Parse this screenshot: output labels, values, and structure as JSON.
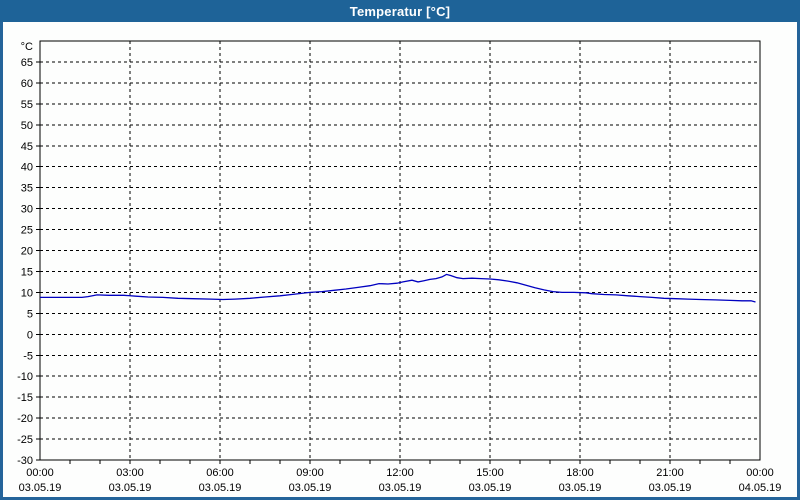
{
  "window": {
    "title": "Temperatur [°C]",
    "titlebar_color": "#1E6398",
    "border_color": "#24649A",
    "background_color": "#FDFEFD"
  },
  "chart_data": {
    "type": "line",
    "title": "Temperatur [°C]",
    "ylabel": "°C",
    "xlabel": "",
    "grid": "dashed",
    "legend": "none",
    "y_axis": {
      "unit": "°C",
      "range": [
        -30,
        70
      ],
      "tick_step": 5,
      "tick_labels": [
        "65",
        "60",
        "55",
        "50",
        "45",
        "40",
        "35",
        "30",
        "25",
        "20",
        "15",
        "10",
        "5",
        "0",
        "-5",
        "-10",
        "-15",
        "-20",
        "-25",
        "-30"
      ]
    },
    "x_axis": {
      "range_hours": [
        0,
        24
      ],
      "minor_tick_hours": 1,
      "grid_interval_hours": 3,
      "tick_labels": [
        {
          "hour": 0,
          "time": "00:00",
          "date": "03.05.19"
        },
        {
          "hour": 3,
          "time": "03:00",
          "date": "03.05.19"
        },
        {
          "hour": 6,
          "time": "06:00",
          "date": "03.05.19"
        },
        {
          "hour": 9,
          "time": "09:00",
          "date": "03.05.19"
        },
        {
          "hour": 12,
          "time": "12:00",
          "date": "03.05.19"
        },
        {
          "hour": 15,
          "time": "15:00",
          "date": "03.05.19"
        },
        {
          "hour": 18,
          "time": "18:00",
          "date": "03.05.19"
        },
        {
          "hour": 21,
          "time": "21:00",
          "date": "03.05.19"
        },
        {
          "hour": 24,
          "time": "00:00",
          "date": "04.05.19"
        }
      ]
    },
    "series": [
      {
        "name": "Temperatur",
        "color": "#0000C0",
        "points": [
          [
            0,
            8.8
          ],
          [
            0.7,
            8.8
          ],
          [
            1.4,
            8.8
          ],
          [
            1.6,
            9.0
          ],
          [
            1.9,
            9.4
          ],
          [
            2.3,
            9.3
          ],
          [
            2.8,
            9.3
          ],
          [
            3.2,
            9.1
          ],
          [
            3.6,
            8.9
          ],
          [
            4.1,
            8.8
          ],
          [
            4.6,
            8.6
          ],
          [
            5.1,
            8.5
          ],
          [
            5.7,
            8.4
          ],
          [
            6.1,
            8.3
          ],
          [
            6.5,
            8.4
          ],
          [
            7.0,
            8.6
          ],
          [
            7.5,
            8.9
          ],
          [
            8.0,
            9.2
          ],
          [
            8.5,
            9.6
          ],
          [
            9.0,
            10.0
          ],
          [
            9.4,
            10.2
          ],
          [
            9.8,
            10.5
          ],
          [
            10.2,
            10.8
          ],
          [
            10.6,
            11.2
          ],
          [
            11.0,
            11.6
          ],
          [
            11.3,
            12.1
          ],
          [
            11.6,
            12.0
          ],
          [
            11.9,
            12.2
          ],
          [
            12.1,
            12.5
          ],
          [
            12.4,
            12.9
          ],
          [
            12.6,
            12.5
          ],
          [
            12.8,
            12.8
          ],
          [
            13.0,
            13.1
          ],
          [
            13.2,
            13.3
          ],
          [
            13.4,
            13.7
          ],
          [
            13.55,
            14.3
          ],
          [
            13.7,
            14.0
          ],
          [
            13.9,
            13.5
          ],
          [
            14.1,
            13.3
          ],
          [
            14.4,
            13.4
          ],
          [
            14.7,
            13.3
          ],
          [
            15.0,
            13.2
          ],
          [
            15.3,
            13.0
          ],
          [
            15.6,
            12.7
          ],
          [
            15.9,
            12.3
          ],
          [
            16.2,
            11.7
          ],
          [
            16.5,
            11.1
          ],
          [
            16.8,
            10.6
          ],
          [
            17.1,
            10.2
          ],
          [
            17.4,
            10.0
          ],
          [
            17.8,
            10.0
          ],
          [
            18.2,
            9.9
          ],
          [
            18.4,
            9.7
          ],
          [
            18.8,
            9.5
          ],
          [
            19.2,
            9.4
          ],
          [
            19.6,
            9.2
          ],
          [
            20.0,
            9.0
          ],
          [
            20.4,
            8.8
          ],
          [
            20.8,
            8.6
          ],
          [
            21.2,
            8.5
          ],
          [
            21.6,
            8.4
          ],
          [
            22.0,
            8.3
          ],
          [
            22.5,
            8.2
          ],
          [
            23.0,
            8.1
          ],
          [
            23.4,
            8.0
          ],
          [
            23.7,
            8.0
          ],
          [
            23.85,
            7.7
          ]
        ]
      }
    ]
  }
}
